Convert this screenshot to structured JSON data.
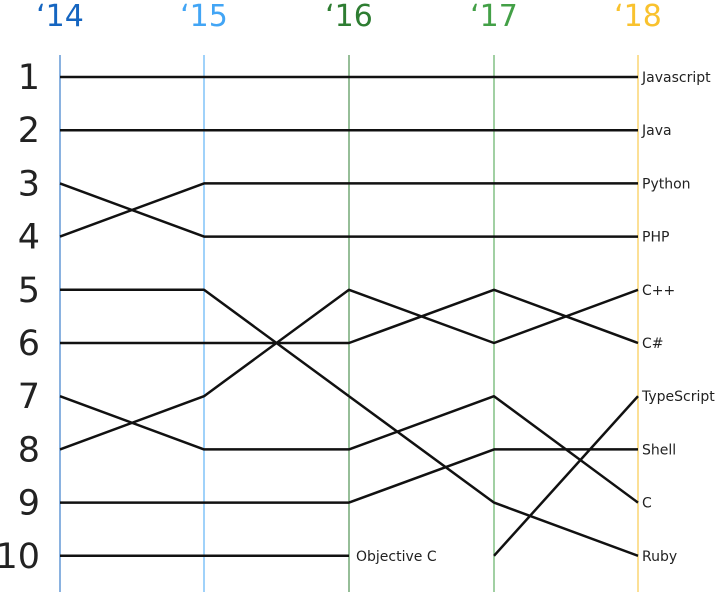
{
  "chart_data": {
    "type": "line",
    "title": "",
    "xlabel": "",
    "ylabel": "",
    "x": [
      "‘14",
      "‘15",
      "‘16",
      "‘17",
      "‘18"
    ],
    "year_colors": [
      "#1565c0",
      "#42a5f5",
      "#2e7d32",
      "#43a047",
      "#f9c22e"
    ],
    "y_ticks": [
      "1",
      "2",
      "3",
      "4",
      "5",
      "6",
      "7",
      "8",
      "9",
      "10"
    ],
    "ylim": [
      1,
      10
    ],
    "y_inverted": true,
    "grid": false,
    "series": [
      {
        "name": "Javascript",
        "values": [
          1,
          1,
          1,
          1,
          1
        ]
      },
      {
        "name": "Java",
        "values": [
          2,
          2,
          2,
          2,
          2
        ]
      },
      {
        "name": "Python",
        "values": [
          4,
          3,
          3,
          3,
          3
        ]
      },
      {
        "name": "PHP",
        "values": [
          3,
          4,
          4,
          4,
          4
        ]
      },
      {
        "name": "C++",
        "values": [
          8,
          7,
          5,
          6,
          5
        ]
      },
      {
        "name": "C#",
        "values": [
          6,
          6,
          6,
          5,
          6
        ]
      },
      {
        "name": "TypeScript",
        "values": [
          null,
          null,
          null,
          10,
          7
        ]
      },
      {
        "name": "Shell",
        "values": [
          9,
          9,
          9,
          8,
          8
        ]
      },
      {
        "name": "C",
        "values": [
          7,
          8,
          8,
          7,
          9
        ]
      },
      {
        "name": "Ruby",
        "values": [
          5,
          5,
          7,
          9,
          10
        ]
      },
      {
        "name": "Objective C",
        "values": [
          10,
          10,
          10,
          null,
          null
        ]
      }
    ]
  }
}
